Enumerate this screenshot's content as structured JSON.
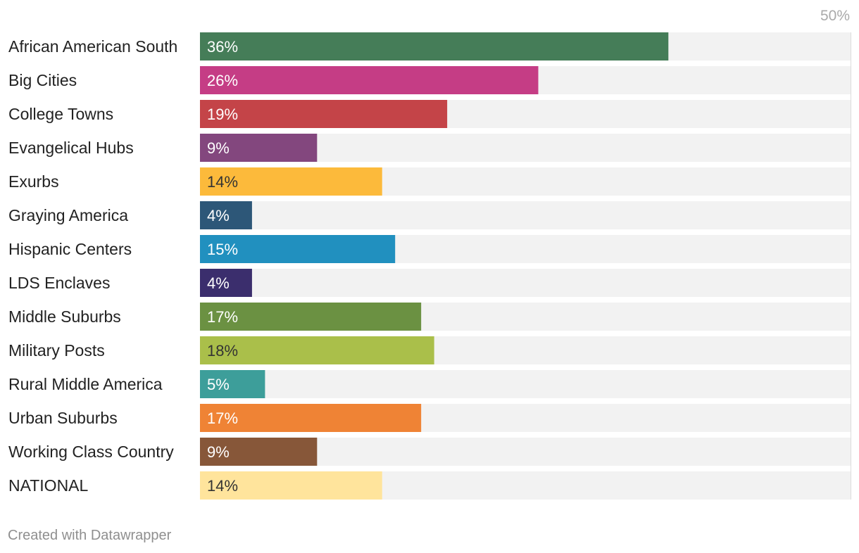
{
  "chart_data": {
    "type": "bar",
    "orientation": "horizontal",
    "categories": [
      "African American South",
      "Big Cities",
      "College Towns",
      "Evangelical Hubs",
      "Exurbs",
      "Graying America",
      "Hispanic Centers",
      "LDS Enclaves",
      "Middle Suburbs",
      "Military Posts",
      "Rural Middle America",
      "Urban Suburbs",
      "Working Class Country",
      "NATIONAL"
    ],
    "values": [
      36,
      26,
      19,
      9,
      14,
      4,
      15,
      4,
      17,
      18,
      5,
      17,
      9,
      14
    ],
    "value_labels": [
      "36%",
      "26%",
      "19%",
      "9%",
      "14%",
      "4%",
      "15%",
      "4%",
      "17%",
      "18%",
      "5%",
      "17%",
      "9%",
      "14%"
    ],
    "colors": [
      "#457d58",
      "#c53d85",
      "#c44448",
      "#83477e",
      "#fcba3b",
      "#2d5778",
      "#2190bf",
      "#3b2e6d",
      "#6b9142",
      "#aabf4a",
      "#3d9e9a",
      "#ef8335",
      "#875739",
      "#ffe49c"
    ],
    "label_colors": [
      "#ffffff",
      "#ffffff",
      "#ffffff",
      "#ffffff",
      "#333333",
      "#ffffff",
      "#ffffff",
      "#ffffff",
      "#ffffff",
      "#333333",
      "#ffffff",
      "#ffffff",
      "#ffffff",
      "#333333"
    ],
    "xlim": [
      0,
      50
    ],
    "axis_max_label": "50%",
    "track_color": "#f2f2f2",
    "title": "",
    "xlabel": "",
    "ylabel": ""
  },
  "footer": {
    "credit": "Created with Datawrapper"
  }
}
